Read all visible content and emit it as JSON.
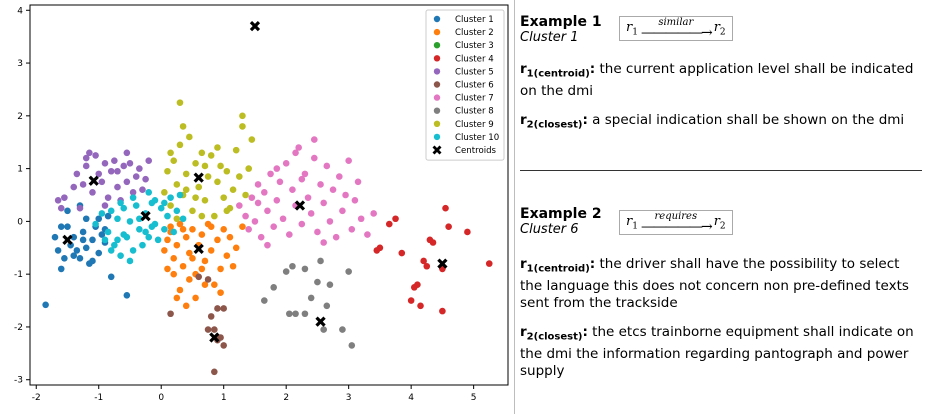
{
  "chart_data": {
    "type": "scatter",
    "xlim": [
      -2.1,
      5.55
    ],
    "ylim": [
      -3.1,
      4.1
    ],
    "xticks": [
      -2,
      -1,
      0,
      1,
      2,
      3,
      4,
      5
    ],
    "yticks": [
      -3,
      -2,
      -1,
      0,
      1,
      2,
      3,
      4
    ],
    "legend_position": "top-right",
    "series": [
      {
        "name": "Cluster 1",
        "color": "#1f77b4",
        "points": [
          [
            -1.85,
            -1.58
          ],
          [
            -1.6,
            -0.9
          ],
          [
            -1.55,
            -0.7
          ],
          [
            -1.65,
            -0.55
          ],
          [
            -1.5,
            -0.1
          ],
          [
            -1.4,
            -0.3
          ],
          [
            -1.35,
            -0.55
          ],
          [
            -1.3,
            -0.7
          ],
          [
            -1.25,
            -0.2
          ],
          [
            -1.2,
            -0.5
          ],
          [
            -1.15,
            -0.8
          ],
          [
            -1.1,
            -0.35
          ],
          [
            -1.05,
            -0.1
          ],
          [
            -1.0,
            -0.6
          ],
          [
            -0.95,
            -0.25
          ],
          [
            -0.9,
            -0.4
          ],
          [
            -0.85,
            0.1
          ],
          [
            -1.5,
            0.2
          ],
          [
            -1.3,
            0.3
          ],
          [
            -1.2,
            0.05
          ],
          [
            -1.4,
            -0.65
          ],
          [
            -1.7,
            -0.3
          ],
          [
            -0.8,
            -1.05
          ],
          [
            -0.55,
            -1.4
          ],
          [
            -1.6,
            -0.1
          ],
          [
            -1.1,
            -0.75
          ],
          [
            -1.0,
            0.05
          ],
          [
            -1.45,
            -0.45
          ],
          [
            -1.25,
            -0.35
          ],
          [
            -0.9,
            -0.15
          ]
        ]
      },
      {
        "name": "Cluster 2",
        "color": "#ff7f0e",
        "points": [
          [
            0.05,
            -0.55
          ],
          [
            0.1,
            -0.35
          ],
          [
            0.15,
            -0.2
          ],
          [
            0.2,
            -0.7
          ],
          [
            0.25,
            -0.45
          ],
          [
            0.3,
            -0.05
          ],
          [
            0.35,
            -0.85
          ],
          [
            0.4,
            -0.3
          ],
          [
            0.45,
            -0.6
          ],
          [
            0.5,
            -0.15
          ],
          [
            0.55,
            -1.0
          ],
          [
            0.6,
            -0.45
          ],
          [
            0.65,
            -0.25
          ],
          [
            0.7,
            -0.75
          ],
          [
            0.75,
            -0.05
          ],
          [
            0.8,
            -0.55
          ],
          [
            0.85,
            -1.2
          ],
          [
            0.9,
            -0.35
          ],
          [
            0.95,
            -0.9
          ],
          [
            1.0,
            -0.15
          ],
          [
            1.05,
            -0.65
          ],
          [
            1.1,
            -0.3
          ],
          [
            1.2,
            -0.5
          ],
          [
            1.3,
            -0.1
          ],
          [
            0.3,
            -1.3
          ],
          [
            0.4,
            -1.6
          ],
          [
            0.55,
            -1.45
          ],
          [
            0.7,
            -1.2
          ],
          [
            0.2,
            -1.0
          ],
          [
            0.1,
            -0.9
          ],
          [
            0.35,
            -0.15
          ],
          [
            0.65,
            -0.9
          ],
          [
            0.8,
            -0.1
          ],
          [
            1.15,
            -0.85
          ],
          [
            0.45,
            -1.1
          ],
          [
            0.25,
            -1.45
          ],
          [
            0.95,
            -1.35
          ],
          [
            0.15,
            -0.1
          ],
          [
            0.5,
            -0.7
          ]
        ]
      },
      {
        "name": "Cluster 3",
        "color": "#2ca02c",
        "points": []
      },
      {
        "name": "Cluster 4",
        "color": "#d62728",
        "points": [
          [
            3.5,
            -0.5
          ],
          [
            3.65,
            -0.05
          ],
          [
            3.85,
            -0.6
          ],
          [
            4.0,
            -1.5
          ],
          [
            4.05,
            -1.25
          ],
          [
            4.1,
            -1.2
          ],
          [
            4.2,
            -0.75
          ],
          [
            4.25,
            -0.85
          ],
          [
            4.3,
            -0.35
          ],
          [
            4.35,
            -0.4
          ],
          [
            4.5,
            -0.9
          ],
          [
            4.55,
            0.25
          ],
          [
            4.6,
            -0.1
          ],
          [
            4.9,
            -0.2
          ],
          [
            5.25,
            -0.8
          ],
          [
            4.5,
            -1.7
          ],
          [
            4.15,
            -1.6
          ],
          [
            3.75,
            0.05
          ],
          [
            3.45,
            -0.55
          ]
        ]
      },
      {
        "name": "Cluster 5",
        "color": "#9467bd",
        "points": [
          [
            -1.65,
            0.4
          ],
          [
            -1.55,
            0.45
          ],
          [
            -1.4,
            0.65
          ],
          [
            -1.35,
            0.9
          ],
          [
            -1.25,
            0.7
          ],
          [
            -1.2,
            1.05
          ],
          [
            -1.15,
            1.3
          ],
          [
            -1.1,
            0.55
          ],
          [
            -1.05,
            1.25
          ],
          [
            -1.0,
            0.9
          ],
          [
            -0.95,
            0.75
          ],
          [
            -0.9,
            1.1
          ],
          [
            -0.85,
            0.45
          ],
          [
            -0.8,
            0.95
          ],
          [
            -0.75,
            1.15
          ],
          [
            -0.7,
            0.65
          ],
          [
            -0.65,
            0.4
          ],
          [
            -0.6,
            1.05
          ],
          [
            -0.55,
            0.75
          ],
          [
            -0.5,
            1.1
          ],
          [
            -0.45,
            0.55
          ],
          [
            -0.4,
            0.85
          ],
          [
            -0.35,
            1.0
          ],
          [
            -0.3,
            0.6
          ],
          [
            -0.25,
            0.8
          ],
          [
            -0.2,
            1.15
          ],
          [
            -1.3,
            0.25
          ],
          [
            -0.9,
            0.3
          ],
          [
            -0.7,
            0.95
          ],
          [
            -0.55,
            1.3
          ],
          [
            -1.6,
            0.25
          ],
          [
            -1.2,
            1.2
          ]
        ]
      },
      {
        "name": "Cluster 6",
        "color": "#8c564b",
        "points": [
          [
            0.15,
            -1.75
          ],
          [
            0.6,
            -1.05
          ],
          [
            0.75,
            -1.1
          ],
          [
            0.8,
            -1.8
          ],
          [
            0.85,
            -2.05
          ],
          [
            0.9,
            -1.65
          ],
          [
            0.95,
            -2.2
          ],
          [
            1.0,
            -2.35
          ],
          [
            1.0,
            -1.65
          ],
          [
            0.85,
            -2.85
          ],
          [
            0.9,
            -2.25
          ],
          [
            0.75,
            -2.05
          ]
        ]
      },
      {
        "name": "Cluster 7",
        "color": "#e377c2",
        "points": [
          [
            1.25,
            0.3
          ],
          [
            1.35,
            0.1
          ],
          [
            1.4,
            -0.15
          ],
          [
            1.45,
            0.45
          ],
          [
            1.5,
            0.0
          ],
          [
            1.55,
            0.7
          ],
          [
            1.6,
            -0.3
          ],
          [
            1.65,
            0.55
          ],
          [
            1.7,
            0.2
          ],
          [
            1.75,
            0.9
          ],
          [
            1.8,
            -0.1
          ],
          [
            1.85,
            0.4
          ],
          [
            1.9,
            0.75
          ],
          [
            1.95,
            0.05
          ],
          [
            2.0,
            1.1
          ],
          [
            2.05,
            -0.25
          ],
          [
            2.1,
            0.6
          ],
          [
            2.15,
            0.3
          ],
          [
            2.2,
            1.4
          ],
          [
            2.25,
            -0.05
          ],
          [
            2.3,
            0.9
          ],
          [
            2.35,
            0.45
          ],
          [
            2.4,
            0.15
          ],
          [
            2.45,
            1.2
          ],
          [
            2.5,
            -0.2
          ],
          [
            2.55,
            0.7
          ],
          [
            2.6,
            0.35
          ],
          [
            2.65,
            1.05
          ],
          [
            2.7,
            0.0
          ],
          [
            2.75,
            0.6
          ],
          [
            2.8,
            -0.3
          ],
          [
            2.85,
            0.85
          ],
          [
            2.9,
            0.2
          ],
          [
            2.95,
            0.5
          ],
          [
            3.0,
            1.15
          ],
          [
            3.05,
            -0.15
          ],
          [
            3.1,
            0.4
          ],
          [
            3.15,
            0.75
          ],
          [
            3.2,
            0.05
          ],
          [
            3.3,
            -0.25
          ],
          [
            3.4,
            0.15
          ],
          [
            2.45,
            1.55
          ],
          [
            2.15,
            1.3
          ],
          [
            1.85,
            1.0
          ],
          [
            1.55,
            0.35
          ],
          [
            2.25,
            0.8
          ],
          [
            1.7,
            -0.45
          ],
          [
            2.6,
            -0.4
          ]
        ]
      },
      {
        "name": "Cluster 8",
        "color": "#7f7f7f",
        "points": [
          [
            1.65,
            -1.5
          ],
          [
            1.8,
            -1.25
          ],
          [
            2.0,
            -0.95
          ],
          [
            2.05,
            -1.75
          ],
          [
            2.1,
            -0.85
          ],
          [
            2.15,
            -1.75
          ],
          [
            2.3,
            -0.9
          ],
          [
            2.4,
            -1.45
          ],
          [
            2.5,
            -1.15
          ],
          [
            2.6,
            -2.05
          ],
          [
            2.65,
            -1.6
          ],
          [
            2.7,
            -1.2
          ],
          [
            2.9,
            -2.05
          ],
          [
            3.0,
            -0.95
          ],
          [
            3.05,
            -2.35
          ],
          [
            2.55,
            -0.75
          ],
          [
            2.3,
            -1.75
          ]
        ]
      },
      {
        "name": "Cluster 9",
        "color": "#bcbd22",
        "points": [
          [
            0.05,
            0.55
          ],
          [
            0.1,
            0.95
          ],
          [
            0.15,
            0.3
          ],
          [
            0.2,
            1.15
          ],
          [
            0.25,
            0.7
          ],
          [
            0.3,
            1.45
          ],
          [
            0.35,
            0.5
          ],
          [
            0.4,
            0.9
          ],
          [
            0.45,
            1.6
          ],
          [
            0.5,
            0.2
          ],
          [
            0.55,
            1.1
          ],
          [
            0.6,
            0.65
          ],
          [
            0.65,
            1.3
          ],
          [
            0.7,
            0.4
          ],
          [
            0.75,
            0.85
          ],
          [
            0.8,
            1.25
          ],
          [
            0.85,
            0.1
          ],
          [
            0.9,
            0.75
          ],
          [
            0.95,
            1.05
          ],
          [
            1.0,
            0.45
          ],
          [
            1.05,
            0.95
          ],
          [
            1.1,
            0.25
          ],
          [
            1.15,
            0.6
          ],
          [
            1.2,
            1.35
          ],
          [
            1.25,
            0.85
          ],
          [
            1.3,
            1.8
          ],
          [
            1.35,
            0.5
          ],
          [
            1.4,
            1.0
          ],
          [
            1.45,
            1.55
          ],
          [
            0.3,
            2.25
          ],
          [
            1.3,
            2.0
          ],
          [
            0.25,
            0.05
          ],
          [
            0.65,
            0.1
          ],
          [
            0.55,
            0.45
          ],
          [
            0.9,
            1.4
          ],
          [
            0.35,
            1.8
          ],
          [
            0.15,
            1.3
          ],
          [
            0.7,
            1.05
          ],
          [
            1.05,
            0.2
          ],
          [
            0.4,
            0.6
          ]
        ]
      },
      {
        "name": "Cluster 10",
        "color": "#17becf",
        "points": [
          [
            -1.05,
            -0.05
          ],
          [
            -0.95,
            0.15
          ],
          [
            -0.9,
            -0.35
          ],
          [
            -0.85,
            -0.2
          ],
          [
            -0.8,
            0.2
          ],
          [
            -0.75,
            -0.45
          ],
          [
            -0.7,
            0.05
          ],
          [
            -0.65,
            -0.65
          ],
          [
            -0.6,
            0.25
          ],
          [
            -0.55,
            -0.3
          ],
          [
            -0.5,
            0.0
          ],
          [
            -0.45,
            -0.55
          ],
          [
            -0.4,
            0.3
          ],
          [
            -0.35,
            -0.15
          ],
          [
            -0.3,
            -0.45
          ],
          [
            -0.25,
            0.15
          ],
          [
            -0.2,
            -0.3
          ],
          [
            -0.15,
            0.35
          ],
          [
            -0.1,
            -0.05
          ],
          [
            -0.05,
            -0.35
          ],
          [
            0.0,
            0.25
          ],
          [
            0.05,
            -0.15
          ],
          [
            0.1,
            0.1
          ],
          [
            0.15,
            0.45
          ],
          [
            0.2,
            -0.2
          ],
          [
            0.25,
            0.2
          ],
          [
            0.3,
            0.5
          ],
          [
            -0.5,
            -0.75
          ],
          [
            -0.2,
            0.55
          ],
          [
            -0.6,
            -0.25
          ],
          [
            -0.35,
            0.05
          ],
          [
            -0.1,
            0.4
          ],
          [
            0.05,
            0.35
          ],
          [
            -0.8,
            -0.55
          ],
          [
            -0.45,
            0.45
          ],
          [
            -0.65,
            0.35
          ],
          [
            -0.25,
            -0.2
          ],
          [
            0.35,
            0.05
          ],
          [
            -0.15,
            -0.1
          ],
          [
            -0.7,
            -0.35
          ]
        ]
      }
    ],
    "centroids": {
      "name": "Centroids",
      "color": "#000000",
      "points": [
        [
          -1.08,
          0.77
        ],
        [
          -1.5,
          -0.35
        ],
        [
          -0.25,
          0.1
        ],
        [
          0.6,
          -0.52
        ],
        [
          0.6,
          0.83
        ],
        [
          1.5,
          3.7
        ],
        [
          2.22,
          0.3
        ],
        [
          2.55,
          -1.9
        ],
        [
          0.85,
          -2.2
        ],
        [
          4.5,
          -0.8
        ]
      ]
    }
  },
  "examples": [
    {
      "title": "Example 1",
      "cluster": "Cluster 1",
      "relation": {
        "left": "r",
        "left_sub": "1",
        "label": "similar",
        "right": "r",
        "right_sub": "2"
      },
      "r1_symbol": "r",
      "r1_sub": "1(centroid)",
      "r1_text": "the current application level shall be indicated on the dmi",
      "r2_symbol": "r",
      "r2_sub": "2(closest)",
      "r2_text": "a special indication shall be shown on the dmi"
    },
    {
      "title": "Example 2",
      "cluster": "Cluster 6",
      "relation": {
        "left": "r",
        "left_sub": "1",
        "label": "requires",
        "right": "r",
        "right_sub": "2"
      },
      "r1_symbol": "r",
      "r1_sub": "1(centroid)",
      "r1_text": "the driver shall have the possibility to select the language this does not concern non pre-defined texts sent from the trackside",
      "r2_symbol": "r",
      "r2_sub": "2(closest)",
      "r2_text": "the etcs trainborne equipment shall indicate on the dmi the information regarding pantograph and power supply"
    }
  ]
}
